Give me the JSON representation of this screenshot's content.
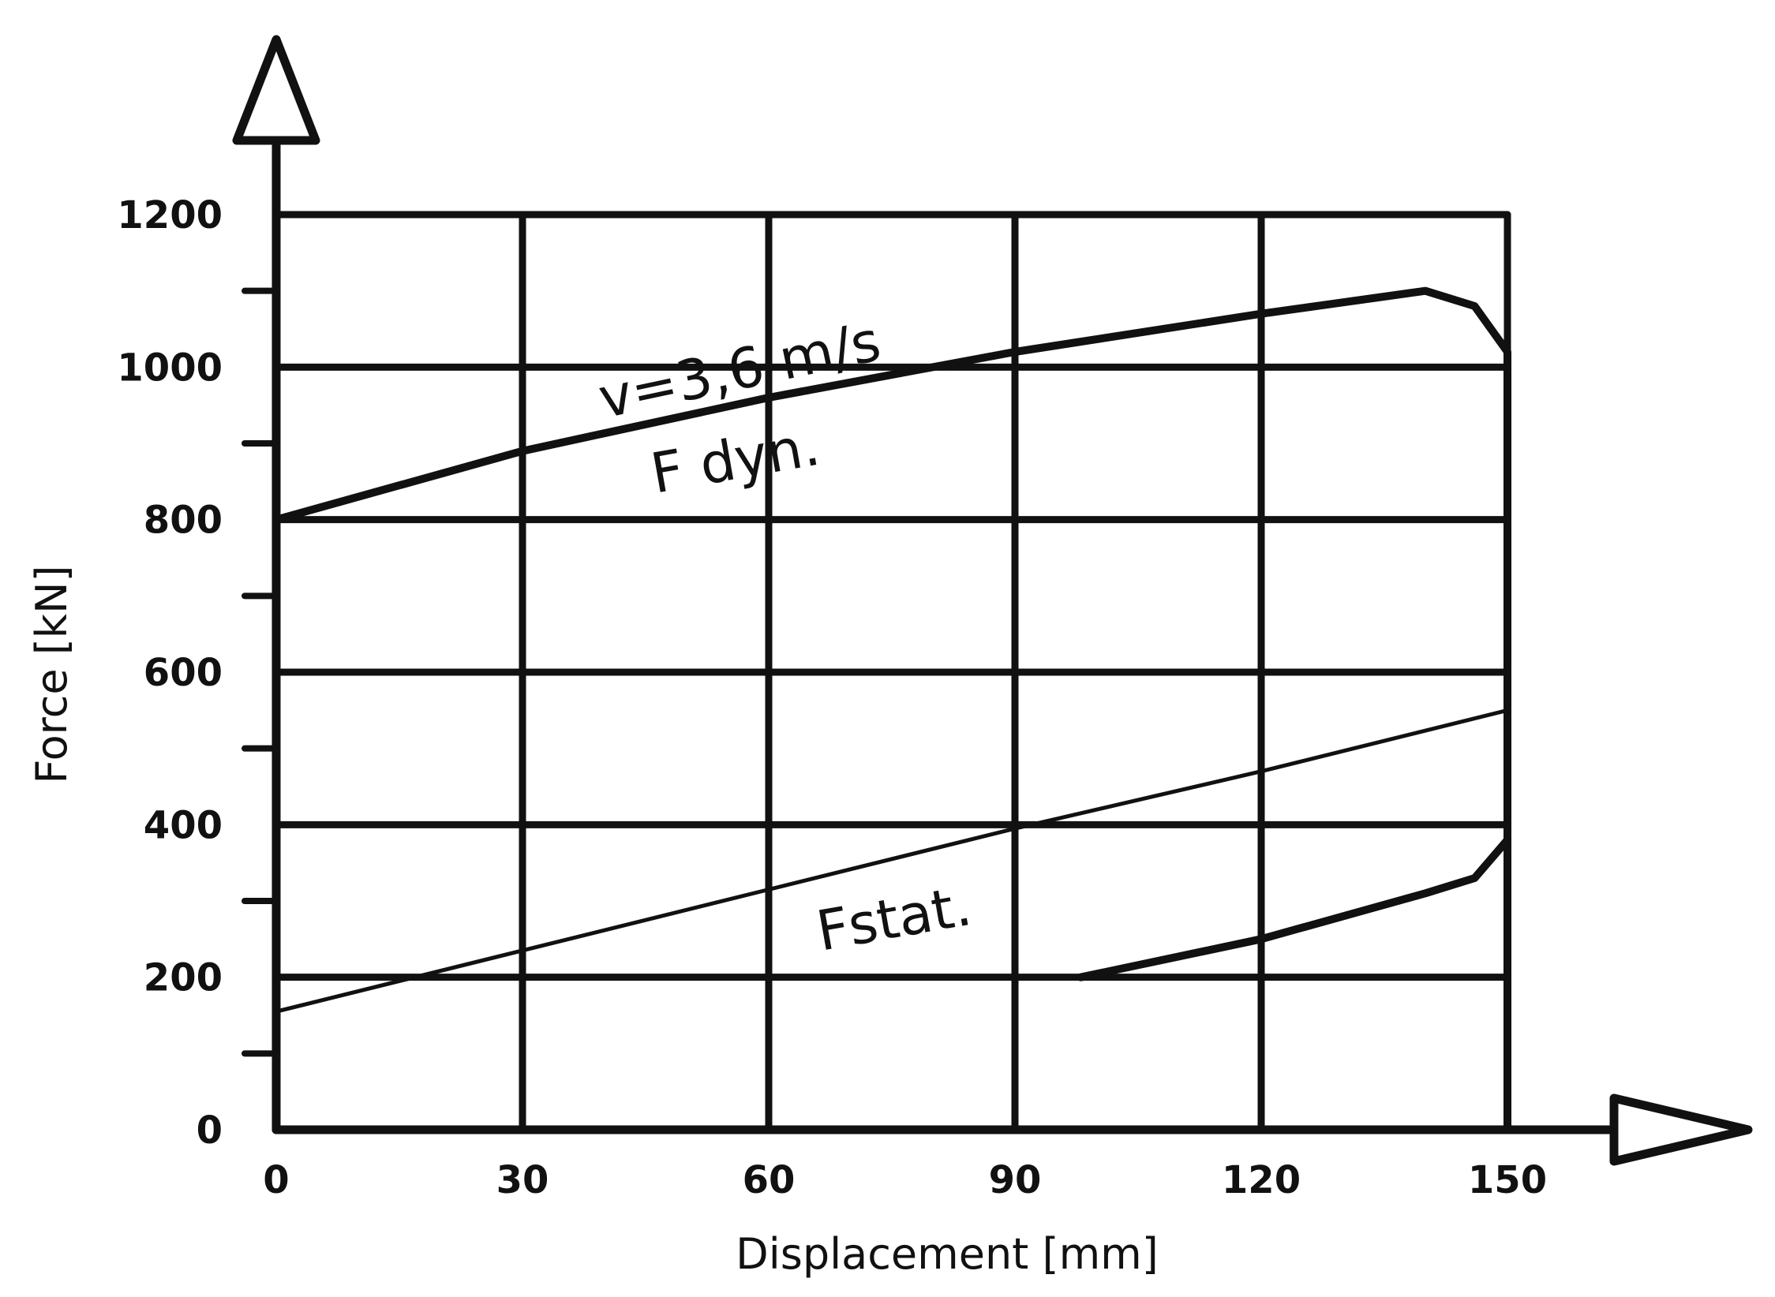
{
  "chart_data": {
    "type": "line",
    "xlabel": "Displacement [mm]",
    "ylabel": "Force [kN]",
    "xlim": [
      0,
      150
    ],
    "ylim": [
      0,
      1200
    ],
    "x_ticks": [
      "0",
      "30",
      "60",
      "90",
      "120",
      "150"
    ],
    "y_ticks": [
      "0",
      "200",
      "400",
      "600",
      "800",
      "1000",
      "1200"
    ],
    "grid": true,
    "series": [
      {
        "name": "F dyn.",
        "line": "thick",
        "x": [
          0,
          30,
          60,
          90,
          120,
          140,
          146,
          150,
          150
        ],
        "y": [
          800,
          890,
          960,
          1020,
          1070,
          1100,
          1080,
          1020,
          0
        ]
      },
      {
        "name": "Fstat.",
        "line": "thin",
        "x": [
          0,
          30,
          60,
          90,
          120,
          150
        ],
        "y": [
          155,
          235,
          315,
          395,
          470,
          550
        ]
      },
      {
        "line": "thick",
        "x": [
          98,
          120,
          140,
          146,
          150
        ],
        "y": [
          200,
          250,
          310,
          330,
          380
        ]
      }
    ],
    "annotations": [
      {
        "text": "v=3,6 m/s"
      },
      {
        "text": "F dyn."
      },
      {
        "text": "Fstat."
      }
    ]
  }
}
